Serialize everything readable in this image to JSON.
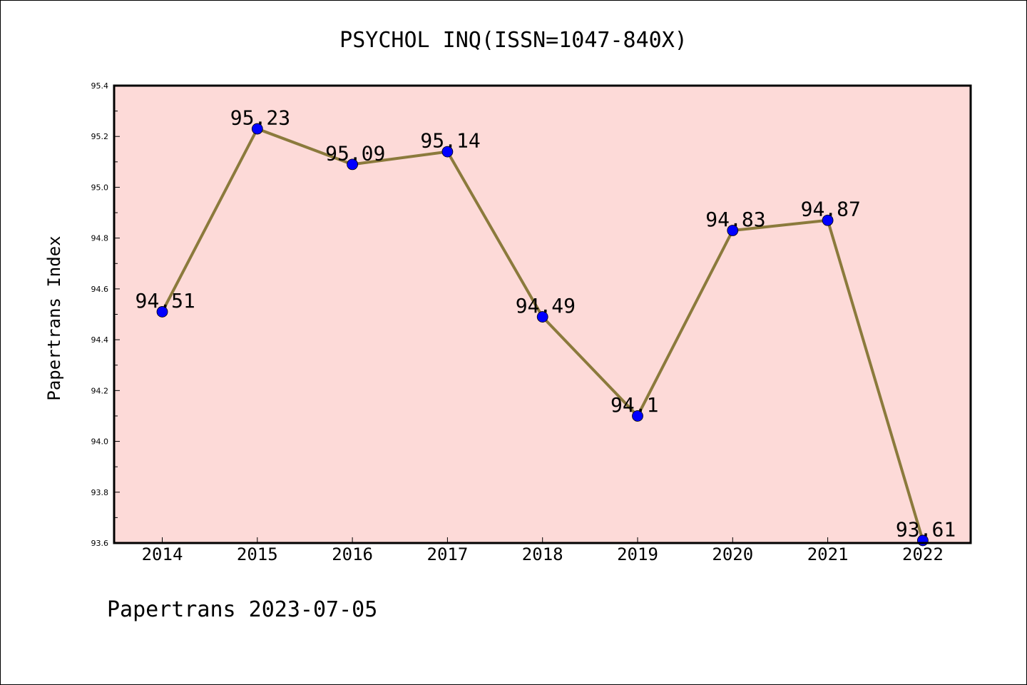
{
  "chart_data": {
    "type": "line",
    "title": "PSYCHOL INQ(ISSN=1047-840X)",
    "xlabel": "",
    "ylabel": "Papertrans Index",
    "categories": [
      "2014",
      "2015",
      "2016",
      "2017",
      "2018",
      "2019",
      "2020",
      "2021",
      "2022"
    ],
    "series": [
      {
        "values": [
          94.51,
          95.23,
          95.09,
          95.14,
          94.49,
          94.1,
          94.83,
          94.87,
          93.61
        ]
      }
    ],
    "data_labels": [
      "94.51",
      "95.23",
      "95.09",
      "95.14",
      "94.49",
      "94.1",
      "94.83",
      "94.87",
      "93.61"
    ],
    "ylim": [
      93.6,
      95.4
    ],
    "yticks": [
      "93.6",
      "93.8",
      "94.0",
      "94.2",
      "94.4",
      "94.6",
      "94.8",
      "95.0",
      "95.2",
      "95.4"
    ],
    "grid": false,
    "legend": "none",
    "colors": {
      "plot_background": "#fddad8",
      "line": "#8b7a3c",
      "marker": "#0000ff",
      "axes": "#000000"
    },
    "footer": "Papertrans 2023-07-05"
  }
}
